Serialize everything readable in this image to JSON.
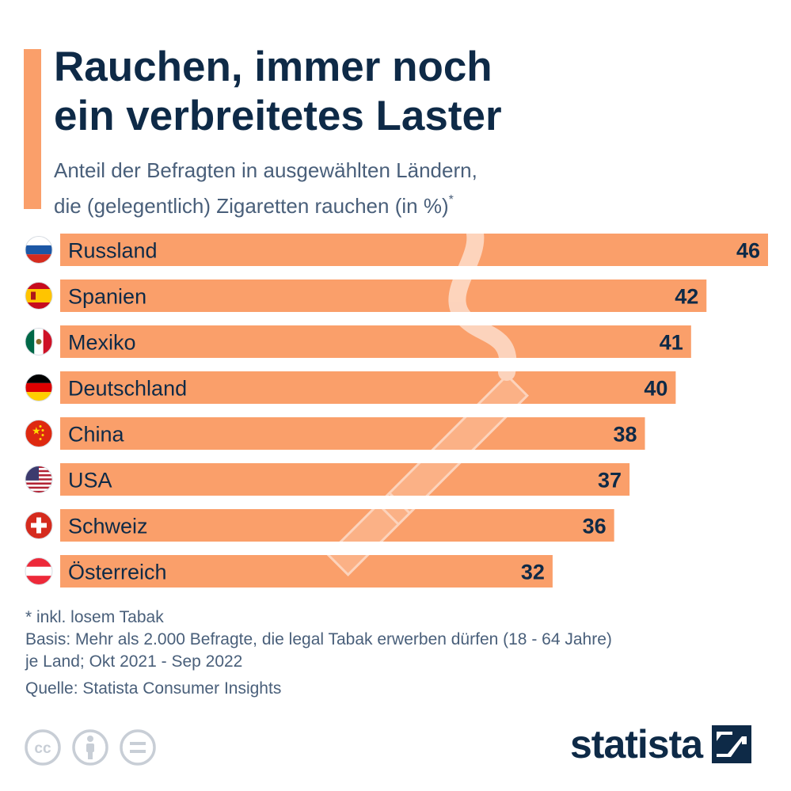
{
  "header": {
    "title_lines": [
      "Rauchen, immer noch",
      "ein verbreitetes Laster"
    ],
    "subtitle_lines": [
      "Anteil der Befragten in ausgewählten Ländern,",
      "die (gelegentlich) Zigaretten rauchen (in %)"
    ],
    "subtitle_marker": "*"
  },
  "chart_data": {
    "type": "bar",
    "orientation": "horizontal",
    "categories": [
      "Russland",
      "Spanien",
      "Mexiko",
      "Deutschland",
      "China",
      "USA",
      "Schweiz",
      "Österreich"
    ],
    "values": [
      46,
      42,
      41,
      40,
      38,
      37,
      36,
      32
    ],
    "flags": [
      "flag-russia-icon",
      "flag-spain-icon",
      "flag-mexico-icon",
      "flag-germany-icon",
      "flag-china-icon",
      "flag-usa-icon",
      "flag-switzerland-icon",
      "flag-austria-icon"
    ],
    "bar_color": "#fa9f6a",
    "xlim": [
      0,
      46
    ],
    "grid": false,
    "legend": "none"
  },
  "notes": {
    "footnote": "* inkl. losem Tabak",
    "basis_lines": [
      "Basis: Mehr als 2.000 Befragte, die legal Tabak erwerben dürfen (18 - 64 Jahre)",
      "je Land; Okt 2021 - Sep 2022"
    ],
    "source": "Quelle: Statista Consumer Insights"
  },
  "branding": {
    "logo_text": "statista",
    "license_icons": [
      "cc-icon",
      "by-icon",
      "nd-icon"
    ]
  },
  "colors": {
    "accent": "#fa9f6a",
    "title": "#0e2a47",
    "subtitle": "#495f7a"
  }
}
